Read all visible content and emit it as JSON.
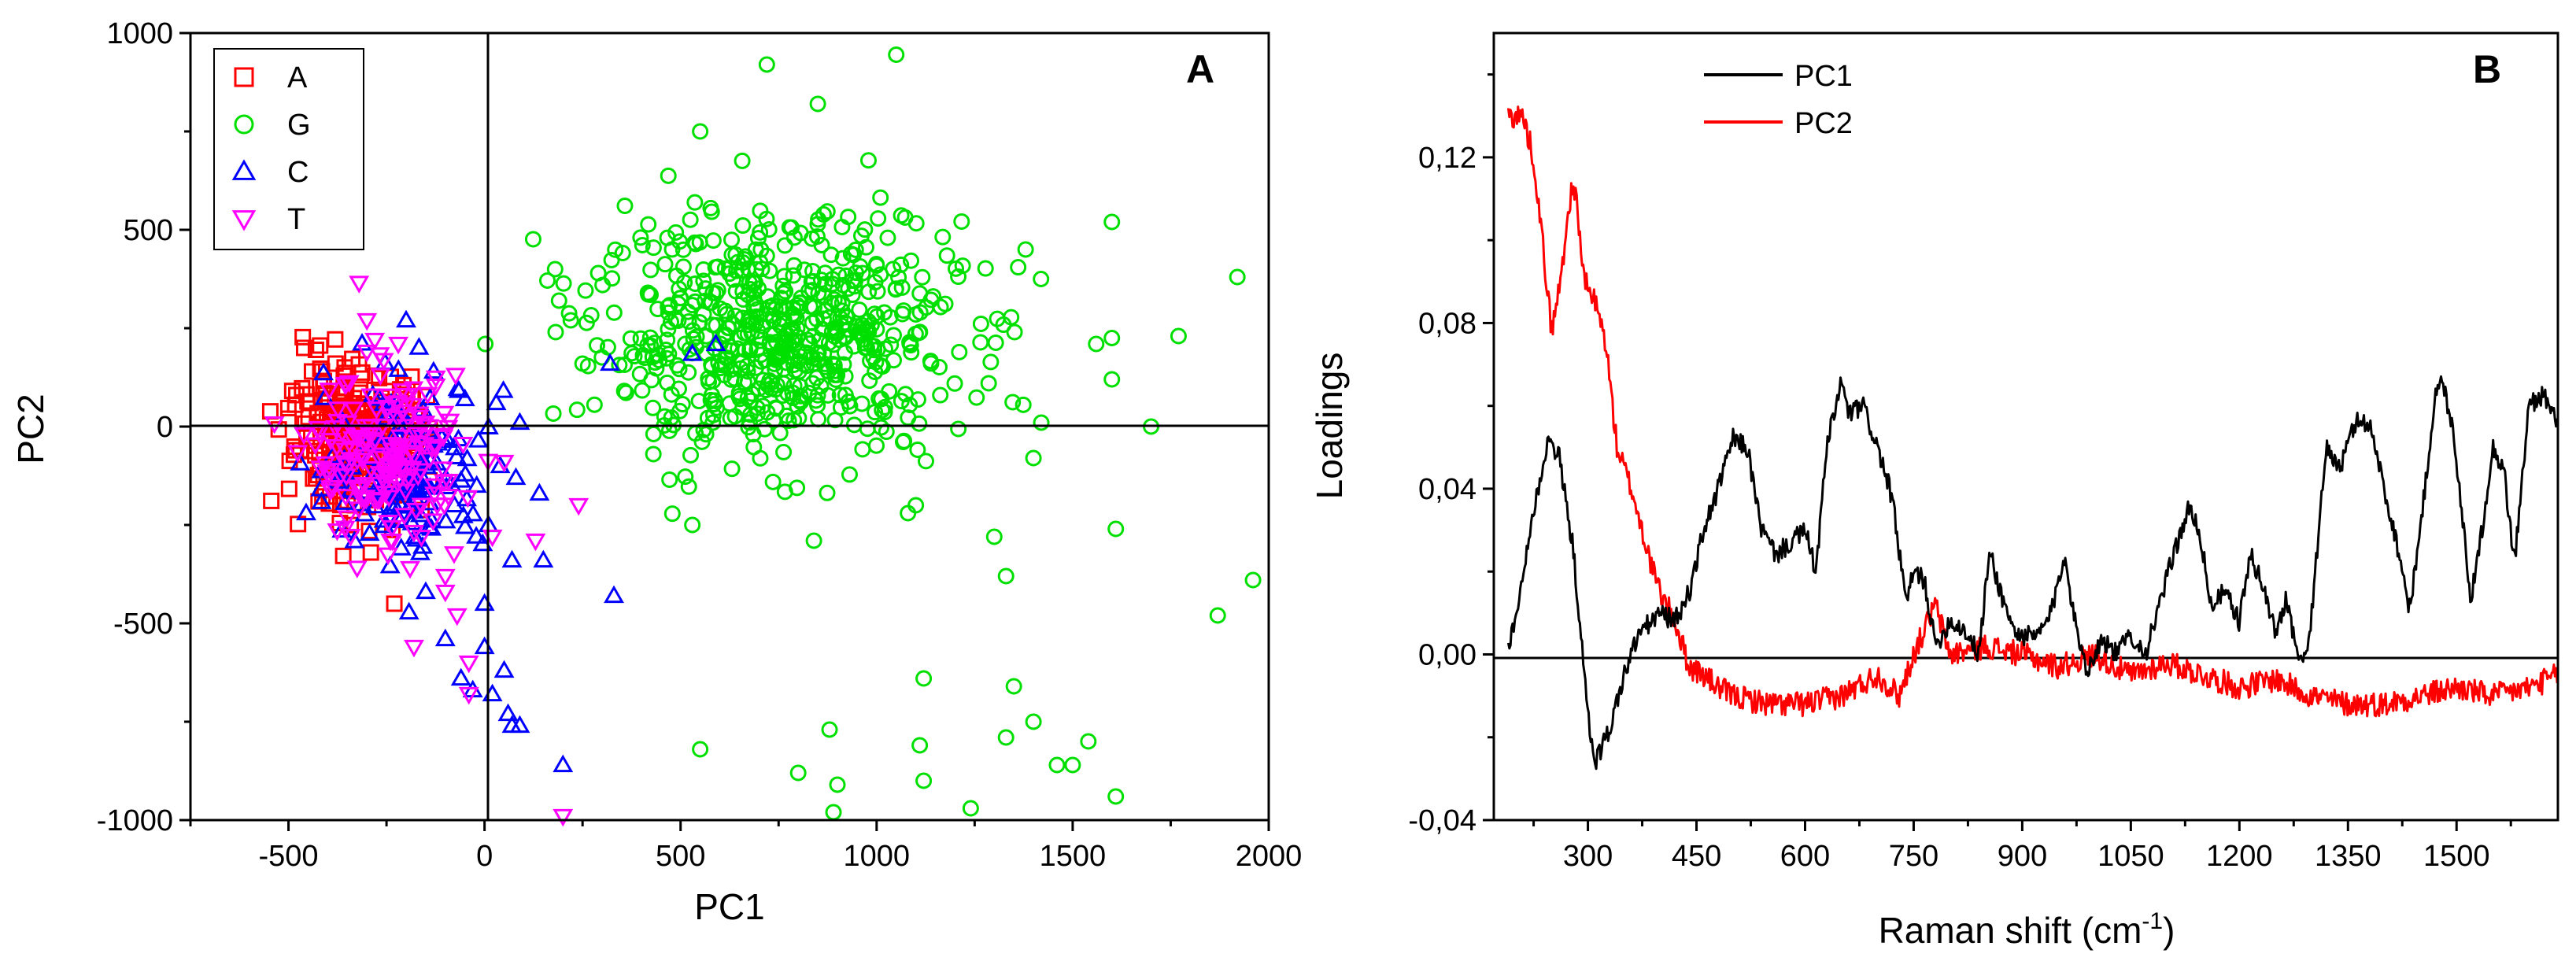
{
  "colors": {
    "A": "#ff0000",
    "G": "#00e000",
    "C": "#0000ff",
    "T": "#ff00ff",
    "PC1_line": "#000000",
    "PC2_line": "#ff0000"
  },
  "chart_data": [
    {
      "type": "scatter",
      "panel_label": "A",
      "xlabel": "PC1",
      "ylabel": "PC2",
      "xlim": [
        -750,
        2000
      ],
      "ylim": [
        -1000,
        1000
      ],
      "xticks": [
        -500,
        0,
        500,
        1000,
        1500,
        2000
      ],
      "xtick_labels": [
        "-500",
        "0",
        "500",
        "1000",
        "1500",
        "2000"
      ],
      "yticks": [
        -1000,
        -500,
        0,
        500,
        1000
      ],
      "ytick_labels": [
        "-1000",
        "-500",
        "0",
        "500",
        "1000"
      ],
      "zero_lines": true,
      "legend_position": "top-left",
      "series": [
        {
          "name": "A",
          "marker": "square",
          "center": [
            -330,
            -30
          ],
          "spread": [
            90,
            90
          ],
          "count": 250,
          "points": [
            [
              -460,
              200
            ],
            [
              -430,
              195
            ],
            [
              -480,
              80
            ],
            [
              -500,
              20
            ],
            [
              -470,
              -60
            ],
            [
              -290,
              -320
            ],
            [
              -230,
              -450
            ],
            [
              -380,
              160
            ],
            [
              -330,
              -200
            ],
            [
              -440,
              140
            ]
          ]
        },
        {
          "name": "G",
          "marker": "circle",
          "center": [
            750,
            230
          ],
          "spread": [
            230,
            150
          ],
          "count": 620,
          "points": [
            [
              720,
              920
            ],
            [
              1050,
              945
            ],
            [
              850,
              820
            ],
            [
              1600,
              520
            ],
            [
              1920,
              380
            ],
            [
              1960,
              -390
            ],
            [
              1870,
              -480
            ],
            [
              1770,
              230
            ],
            [
              1600,
              120
            ],
            [
              1610,
              -260
            ],
            [
              1420,
              10
            ],
            [
              1400,
              -80
            ],
            [
              550,
              750
            ],
            [
              530,
              -250
            ],
            [
              550,
              -820
            ],
            [
              800,
              -880
            ],
            [
              880,
              -770
            ],
            [
              900,
              -910
            ],
            [
              890,
              -980
            ],
            [
              1110,
              -810
            ],
            [
              1120,
              -900
            ],
            [
              1120,
              -640
            ],
            [
              1240,
              -970
            ],
            [
              1330,
              -790
            ],
            [
              1350,
              -660
            ],
            [
              1400,
              -750
            ],
            [
              1460,
              -860
            ],
            [
              1500,
              -860
            ],
            [
              1540,
              -800
            ],
            [
              1610,
              -940
            ],
            [
              1300,
              -280
            ],
            [
              1330,
              -380
            ],
            [
              1380,
              450
            ],
            [
              1600,
              225
            ],
            [
              1560,
              210
            ],
            [
              180,
              400
            ],
            [
              190,
              320
            ],
            [
              220,
              270
            ],
            [
              250,
              160
            ],
            [
              290,
              390
            ],
            [
              1700,
              0
            ],
            [
              840,
              -290
            ],
            [
              1100,
              -200
            ],
            [
              1080,
              -220
            ]
          ]
        },
        {
          "name": "C",
          "marker": "triangle-up",
          "center": [
            -200,
            -100
          ],
          "spread": [
            100,
            110
          ],
          "count": 160,
          "points": [
            [
              -200,
              270
            ],
            [
              -130,
              140
            ],
            [
              -50,
              70
            ],
            [
              30,
              60
            ],
            [
              90,
              10
            ],
            [
              320,
              160
            ],
            [
              530,
              185
            ],
            [
              590,
              210
            ],
            [
              330,
              -430
            ],
            [
              0,
              -450
            ],
            [
              140,
              -170
            ],
            [
              150,
              -340
            ],
            [
              70,
              -340
            ],
            [
              0,
              -560
            ],
            [
              50,
              -620
            ],
            [
              -30,
              -670
            ],
            [
              20,
              -680
            ],
            [
              60,
              -730
            ],
            [
              70,
              -760
            ],
            [
              90,
              -760
            ],
            [
              200,
              -860
            ],
            [
              -100,
              -540
            ],
            [
              -150,
              -420
            ],
            [
              -60,
              -640
            ],
            [
              10,
              -250
            ],
            [
              -20,
              -150
            ],
            [
              40,
              -100
            ],
            [
              80,
              -130
            ]
          ]
        },
        {
          "name": "T",
          "marker": "triangle-down",
          "center": [
            -250,
            -80
          ],
          "spread": [
            95,
            100
          ],
          "count": 180,
          "points": [
            [
              -320,
              365
            ],
            [
              -300,
              270
            ],
            [
              -280,
              220
            ],
            [
              -220,
              210
            ],
            [
              -300,
              190
            ],
            [
              -180,
              -560
            ],
            [
              -70,
              -480
            ],
            [
              -40,
              -680
            ],
            [
              200,
              -990
            ],
            [
              240,
              -200
            ],
            [
              130,
              -290
            ],
            [
              -190,
              -360
            ],
            [
              -240,
              -290
            ],
            [
              50,
              -90
            ],
            [
              -100,
              -420
            ],
            [
              -40,
              -600
            ],
            [
              20,
              -280
            ],
            [
              -100,
              -380
            ]
          ]
        }
      ]
    },
    {
      "type": "line",
      "panel_label": "B",
      "xlabel_main": "Raman shift (cm",
      "xlabel_sup": "-1",
      "xlabel_end": ")",
      "ylabel": "Loadings",
      "xlim": [
        170,
        1640
      ],
      "ylim": [
        -0.04,
        0.15
      ],
      "xticks": [
        300,
        450,
        600,
        750,
        900,
        1050,
        1200,
        1350,
        1500
      ],
      "xtick_labels": [
        "300",
        "450",
        "600",
        "750",
        "900",
        "1050",
        "1200",
        "1350",
        "1500"
      ],
      "yticks": [
        -0.04,
        0.0,
        0.04,
        0.08,
        0.12
      ],
      "ytick_labels": [
        "-0,04",
        "0,00",
        "0,04",
        "0,08",
        "0,12"
      ],
      "zero_line": true,
      "legend_position": "top-center",
      "series": [
        {
          "name": "PC1",
          "noise": 0.0025,
          "points": [
            [
              190,
              0.002
            ],
            [
              200,
              0.008
            ],
            [
              220,
              0.03
            ],
            [
              245,
              0.052
            ],
            [
              260,
              0.048
            ],
            [
              280,
              0.025
            ],
            [
              300,
              -0.015
            ],
            [
              310,
              -0.026
            ],
            [
              330,
              -0.018
            ],
            [
              350,
              -0.005
            ],
            [
              370,
              0.005
            ],
            [
              400,
              0.01
            ],
            [
              420,
              0.008
            ],
            [
              440,
              0.015
            ],
            [
              460,
              0.03
            ],
            [
              480,
              0.04
            ],
            [
              500,
              0.052
            ],
            [
              520,
              0.05
            ],
            [
              540,
              0.03
            ],
            [
              560,
              0.024
            ],
            [
              580,
              0.027
            ],
            [
              600,
              0.03
            ],
            [
              615,
              0.02
            ],
            [
              630,
              0.05
            ],
            [
              650,
              0.066
            ],
            [
              660,
              0.058
            ],
            [
              680,
              0.06
            ],
            [
              700,
              0.05
            ],
            [
              720,
              0.038
            ],
            [
              740,
              0.012
            ],
            [
              750,
              0.02
            ],
            [
              765,
              0.018
            ],
            [
              780,
              0.002
            ],
            [
              800,
              0.008
            ],
            [
              820,
              0.006
            ],
            [
              840,
              0.0
            ],
            [
              855,
              0.025
            ],
            [
              870,
              0.015
            ],
            [
              890,
              0.005
            ],
            [
              920,
              0.004
            ],
            [
              940,
              0.01
            ],
            [
              960,
              0.025
            ],
            [
              970,
              0.01
            ],
            [
              990,
              -0.004
            ],
            [
              1010,
              0.004
            ],
            [
              1030,
              0.0
            ],
            [
              1050,
              0.005
            ],
            [
              1070,
              0.0
            ],
            [
              1090,
              0.012
            ],
            [
              1110,
              0.025
            ],
            [
              1130,
              0.035
            ],
            [
              1145,
              0.03
            ],
            [
              1160,
              0.012
            ],
            [
              1180,
              0.015
            ],
            [
              1200,
              0.008
            ],
            [
              1215,
              0.024
            ],
            [
              1230,
              0.018
            ],
            [
              1250,
              0.005
            ],
            [
              1265,
              0.014
            ],
            [
              1280,
              0.0
            ],
            [
              1290,
              -0.002
            ],
            [
              1300,
              0.01
            ],
            [
              1320,
              0.05
            ],
            [
              1340,
              0.045
            ],
            [
              1360,
              0.056
            ],
            [
              1380,
              0.056
            ],
            [
              1400,
              0.04
            ],
            [
              1420,
              0.025
            ],
            [
              1435,
              0.011
            ],
            [
              1450,
              0.03
            ],
            [
              1470,
              0.062
            ],
            [
              1480,
              0.066
            ],
            [
              1495,
              0.055
            ],
            [
              1510,
              0.03
            ],
            [
              1520,
              0.013
            ],
            [
              1535,
              0.03
            ],
            [
              1550,
              0.05
            ],
            [
              1565,
              0.045
            ],
            [
              1580,
              0.022
            ],
            [
              1600,
              0.06
            ],
            [
              1620,
              0.063
            ],
            [
              1640,
              0.055
            ]
          ]
        },
        {
          "name": "PC2",
          "noise": 0.003,
          "points": [
            [
              190,
              0.13
            ],
            [
              210,
              0.13
            ],
            [
              225,
              0.12
            ],
            [
              240,
              0.095
            ],
            [
              250,
              0.078
            ],
            [
              262,
              0.09
            ],
            [
              275,
              0.11
            ],
            [
              282,
              0.113
            ],
            [
              295,
              0.09
            ],
            [
              310,
              0.085
            ],
            [
              325,
              0.075
            ],
            [
              340,
              0.05
            ],
            [
              360,
              0.04
            ],
            [
              375,
              0.03
            ],
            [
              390,
              0.02
            ],
            [
              400,
              0.015
            ],
            [
              420,
              0.008
            ],
            [
              440,
              -0.003
            ],
            [
              460,
              -0.005
            ],
            [
              480,
              -0.008
            ],
            [
              500,
              -0.01
            ],
            [
              550,
              -0.012
            ],
            [
              600,
              -0.012
            ],
            [
              650,
              -0.01
            ],
            [
              700,
              -0.005
            ],
            [
              730,
              -0.01
            ],
            [
              750,
              0.0
            ],
            [
              770,
              0.008
            ],
            [
              780,
              0.012
            ],
            [
              800,
              0.0
            ],
            [
              850,
              0.002
            ],
            [
              900,
              0.0
            ],
            [
              950,
              -0.003
            ],
            [
              1000,
              0.0
            ],
            [
              1050,
              -0.005
            ],
            [
              1100,
              -0.002
            ],
            [
              1150,
              -0.005
            ],
            [
              1200,
              -0.008
            ],
            [
              1250,
              -0.006
            ],
            [
              1300,
              -0.01
            ],
            [
              1350,
              -0.012
            ],
            [
              1400,
              -0.012
            ],
            [
              1450,
              -0.01
            ],
            [
              1500,
              -0.008
            ],
            [
              1550,
              -0.01
            ],
            [
              1600,
              -0.008
            ],
            [
              1640,
              -0.005
            ]
          ]
        }
      ]
    }
  ]
}
